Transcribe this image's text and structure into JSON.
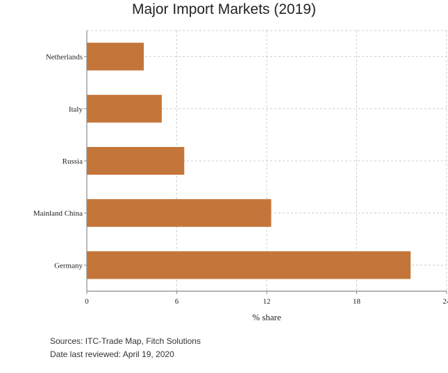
{
  "chart_data": {
    "type": "bar",
    "orientation": "horizontal",
    "title": "Major Import Markets (2019)",
    "xlabel": "% share",
    "ylabel": "",
    "categories": [
      "Netherlands",
      "Italy",
      "Russia",
      "Mainland China",
      "Germany"
    ],
    "values": [
      3.8,
      5.0,
      6.5,
      12.3,
      21.6
    ],
    "xlim": [
      0,
      24
    ],
    "xticks": [
      0,
      6,
      12,
      18,
      24
    ],
    "grid": true,
    "bar_color": "#c4763a"
  },
  "footer": {
    "sources": "Sources: ITC-Trade Map, Fitch Solutions",
    "reviewed": "Date last reviewed: April 19, 2020"
  }
}
